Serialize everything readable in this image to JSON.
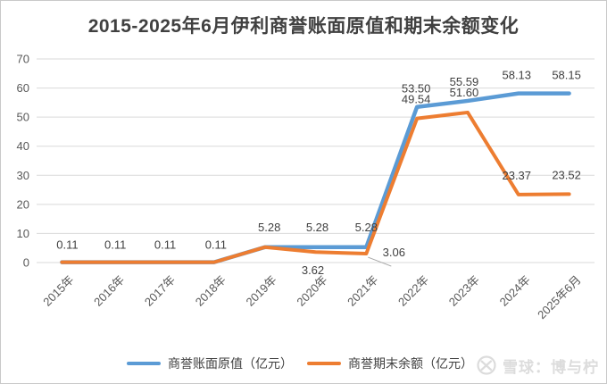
{
  "chart_data": {
    "type": "line",
    "title": "2015-2025年6月伊利商誉账面原值和期末余额变化",
    "categories": [
      "2015年",
      "2016年",
      "2017年",
      "2018年",
      "2019年",
      "2020年",
      "2021年",
      "2022年",
      "2023年",
      "2024年",
      "2025年6月"
    ],
    "series": [
      {
        "name": "商誉账面原值（亿元）",
        "color": "#5B9BD5",
        "stroke_width": 4.5,
        "values": [
          0.11,
          0.11,
          0.11,
          0.11,
          5.28,
          5.28,
          5.28,
          53.5,
          55.59,
          58.13,
          58.15
        ],
        "labels": [
          {
            "i": 0,
            "text": "0.11",
            "dx": 6,
            "dy": -15
          },
          {
            "i": 1,
            "text": "0.11",
            "dx": 3,
            "dy": -15
          },
          {
            "i": 2,
            "text": "0.11",
            "dx": 2,
            "dy": -15
          },
          {
            "i": 3,
            "text": "0.11",
            "dx": 2,
            "dy": -15
          },
          {
            "i": 4,
            "text": "5.28",
            "dx": 5,
            "dy": -18
          },
          {
            "i": 5,
            "text": "5.28",
            "dx": 2,
            "dy": -18
          },
          {
            "i": 6,
            "text": "5.28",
            "dx": 0,
            "dy": -18
          },
          {
            "i": 7,
            "text": "53.50",
            "dx": -1,
            "dy": -16
          },
          {
            "i": 8,
            "text": "55.59",
            "dx": -4,
            "dy": -17
          },
          {
            "i": 9,
            "text": "58.13",
            "dx": -2,
            "dy": -16
          },
          {
            "i": 10,
            "text": "58.15",
            "dx": -3,
            "dy": -16
          }
        ]
      },
      {
        "name": "商誉期末余额（亿元）",
        "color": "#ED7D31",
        "stroke_width": 4,
        "values": [
          0.11,
          0.11,
          0.11,
          0.11,
          5.28,
          3.62,
          3.06,
          49.54,
          51.6,
          23.37,
          23.52
        ],
        "labels": [
          {
            "i": 5,
            "text": "3.62",
            "dx": -3,
            "dy": 25
          },
          {
            "i": 6,
            "text": "3.06",
            "dx": 31,
            "dy": 3
          },
          {
            "i": 7,
            "text": "49.54",
            "dx": -1,
            "dy": -17
          },
          {
            "i": 8,
            "text": "51.60",
            "dx": -4,
            "dy": -18
          },
          {
            "i": 9,
            "text": "23.37",
            "dx": -2,
            "dy": -17
          },
          {
            "i": 10,
            "text": "23.52",
            "dx": -3,
            "dy": -17
          }
        ]
      }
    ],
    "ylim": [
      0,
      70
    ],
    "ytick_step": 10,
    "yticks": [
      0,
      10,
      20,
      30,
      40,
      50,
      60,
      70
    ],
    "grid": true,
    "grid_color": "#D9D9D9",
    "axis_text_color": "#595959",
    "data_label_color": "#404040",
    "legend_position": "bottom",
    "leader_line": {
      "series": 1,
      "index": 6,
      "dx1": 2,
      "dy1": 4,
      "dx2": 28,
      "dy2": 14,
      "color": "#A6A6A6"
    }
  },
  "watermark": {
    "text": "雪球：博与柠",
    "icon": "snowball-logo-icon",
    "color": "#dcdcdc"
  },
  "page": {
    "background": "#ffffff",
    "border_color": "#c9c9c9"
  }
}
